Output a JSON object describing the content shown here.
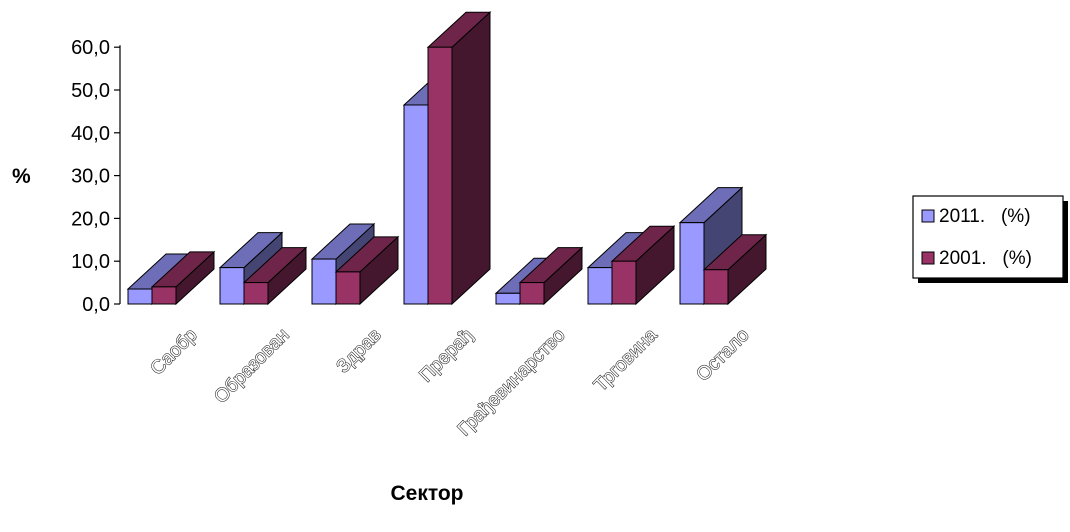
{
  "chart_data": {
    "type": "bar",
    "style": "3d-clustered",
    "categories": [
      "Саобр",
      "Образован",
      "Здрав",
      "Прерађ",
      "Грађевинарство",
      "Трговина",
      "Остало"
    ],
    "series": [
      {
        "name": "2011.   (%)",
        "values": [
          3.5,
          8.5,
          10.5,
          46.5,
          2.5,
          8.5,
          19.0
        ],
        "color": "#9999ff"
      },
      {
        "name": "2001.   (%)",
        "values": [
          4.0,
          5.0,
          7.5,
          60.0,
          5.0,
          10.0,
          8.0
        ],
        "color": "#993366"
      }
    ],
    "ylim": [
      0,
      60
    ],
    "yticks": [
      "0,0",
      "10,0",
      "20,0",
      "30,0",
      "40,0",
      "50,0",
      "60,0"
    ],
    "ylabel": "%",
    "xlabel": "Сектор",
    "grid": false,
    "legend": "right"
  }
}
